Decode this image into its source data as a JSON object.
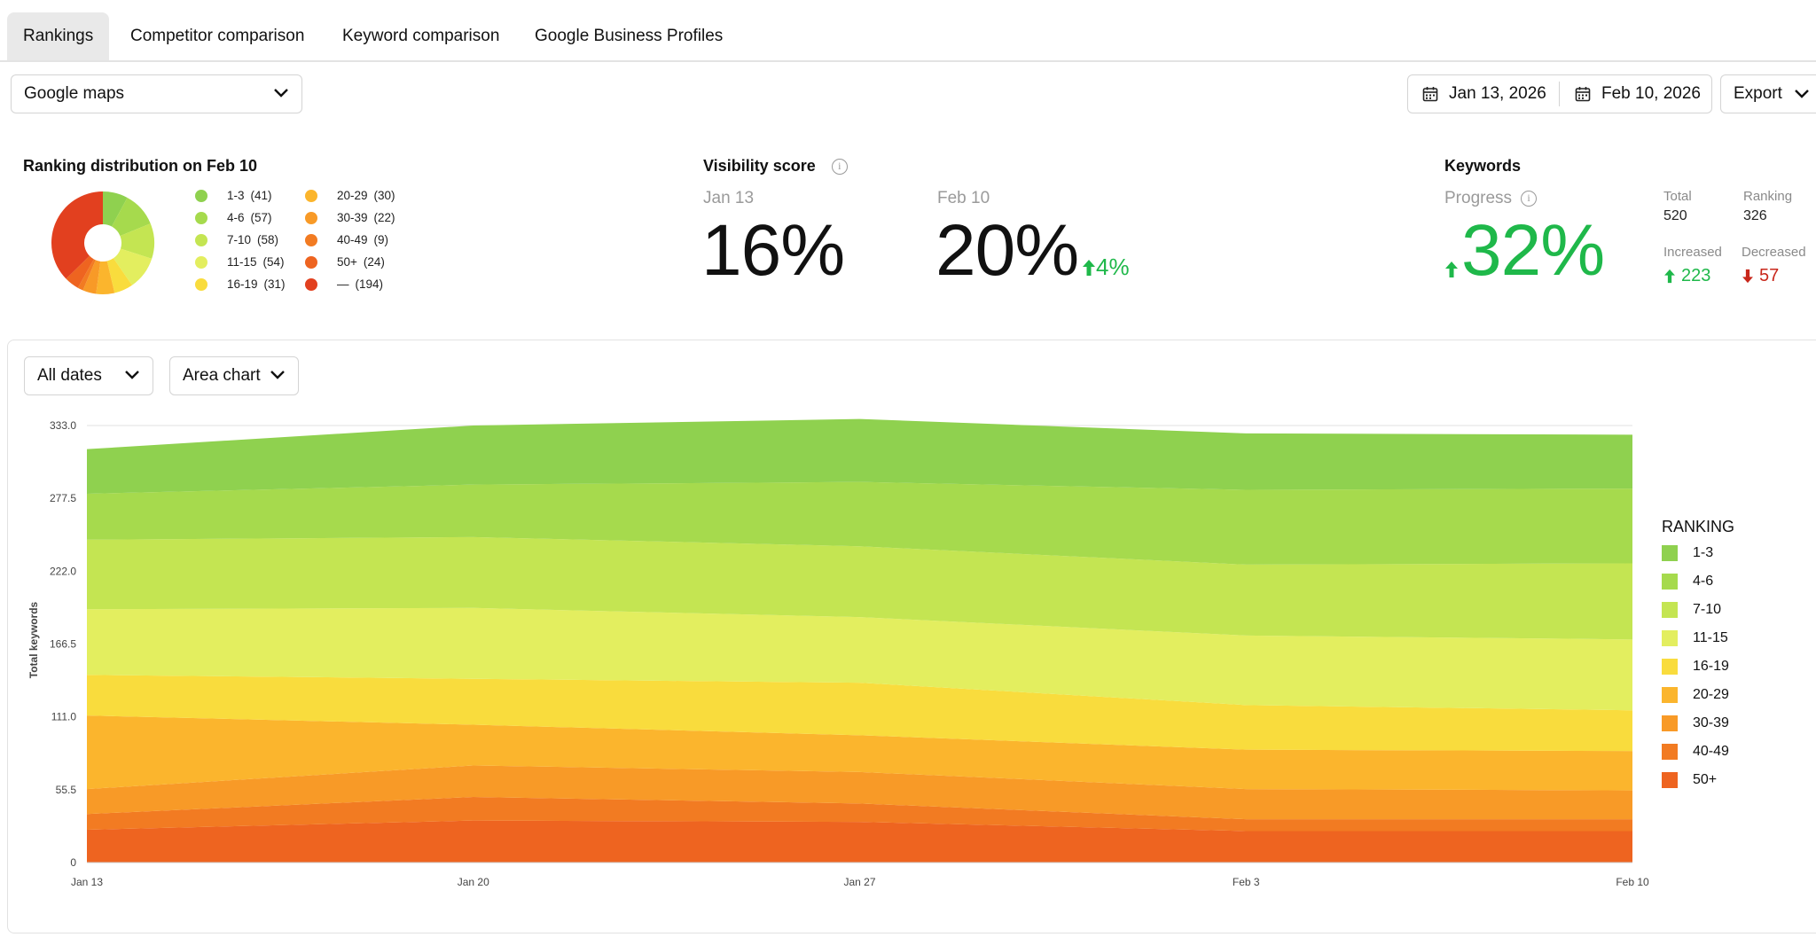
{
  "tabs": [
    {
      "label": "Rankings",
      "active": true
    },
    {
      "label": "Competitor comparison",
      "active": false
    },
    {
      "label": "Keyword comparison",
      "active": false
    },
    {
      "label": "Google Business Profiles",
      "active": false
    }
  ],
  "toolbar": {
    "source_select": "Google maps",
    "date_start": "Jan 13, 2026",
    "date_end": "Feb 10, 2026",
    "export_label": "Export"
  },
  "distribution": {
    "title": "Ranking distribution on Feb 10",
    "items": [
      {
        "label": "1-3",
        "count": "(41)",
        "value": 41,
        "color": "#8fd14f"
      },
      {
        "label": "4-6",
        "count": "(57)",
        "value": 57,
        "color": "#a6da4d"
      },
      {
        "label": "7-10",
        "count": "(58)",
        "value": 58,
        "color": "#c4e552"
      },
      {
        "label": "11-15",
        "count": "(54)",
        "value": 54,
        "color": "#e3ee5f"
      },
      {
        "label": "16-19",
        "count": "(31)",
        "value": 31,
        "color": "#f9dc3d"
      },
      {
        "label": "20-29",
        "count": "(30)",
        "value": 30,
        "color": "#fbb52d"
      },
      {
        "label": "30-39",
        "count": "(22)",
        "value": 22,
        "color": "#f89a27"
      },
      {
        "label": "40-49",
        "count": "(9)",
        "value": 9,
        "color": "#f27b22"
      },
      {
        "label": "50+",
        "count": "(24)",
        "value": 24,
        "color": "#ee6420"
      },
      {
        "label": "—",
        "count": "(194)",
        "value": 194,
        "color": "#e2401f"
      }
    ]
  },
  "visibility": {
    "title": "Visibility score",
    "info_icon": "i",
    "start_label": "Jan 13",
    "start_value": "16%",
    "end_label": "Feb 10",
    "end_value": "20%",
    "change": "4%",
    "change_color": "#1fb84a"
  },
  "keywords": {
    "title": "Keywords",
    "progress_label": "Progress",
    "progress_value": "32%",
    "total_label": "Total",
    "total_value": "520",
    "ranking_label": "Ranking",
    "ranking_value": "326",
    "increased_label": "Increased",
    "increased_value": "223",
    "decreased_label": "Decreased",
    "decreased_value": "57"
  },
  "chart_controls": {
    "range_select": "All dates",
    "type_select": "Area chart"
  },
  "chart_data": {
    "type": "area",
    "stacked": true,
    "x": [
      "Jan 13",
      "Jan 20",
      "Jan 27",
      "Feb 3",
      "Feb 10"
    ],
    "ylabel": "Total keywords",
    "yticks": [
      "0",
      "55.5",
      "111.0",
      "166.5",
      "222.0",
      "277.5",
      "333.0"
    ],
    "ylim": [
      0,
      333
    ],
    "legend_title": "RANKING",
    "legend_position": "right",
    "series": [
      {
        "name": "50+",
        "color": "#ee6420",
        "values": [
          25,
          32,
          31,
          24,
          24
        ]
      },
      {
        "name": "40-49",
        "color": "#f27b22",
        "values": [
          12,
          18,
          14,
          9,
          9
        ]
      },
      {
        "name": "30-39",
        "color": "#f89a27",
        "values": [
          19,
          24,
          24,
          23,
          22
        ]
      },
      {
        "name": "20-29",
        "color": "#fbb52d",
        "values": [
          56,
          31,
          28,
          30,
          30
        ]
      },
      {
        "name": "16-19",
        "color": "#f9dc3d",
        "values": [
          31,
          35,
          40,
          34,
          31
        ]
      },
      {
        "name": "11-15",
        "color": "#e3ee5f",
        "values": [
          50,
          54,
          50,
          53,
          54
        ]
      },
      {
        "name": "7-10",
        "color": "#c4e552",
        "values": [
          53,
          54,
          54,
          54,
          58
        ]
      },
      {
        "name": "4-6",
        "color": "#a6da4d",
        "values": [
          35,
          40,
          49,
          57,
          57
        ]
      },
      {
        "name": "1-3",
        "color": "#8fd14f",
        "values": [
          34,
          45,
          48,
          43,
          41
        ]
      }
    ]
  }
}
